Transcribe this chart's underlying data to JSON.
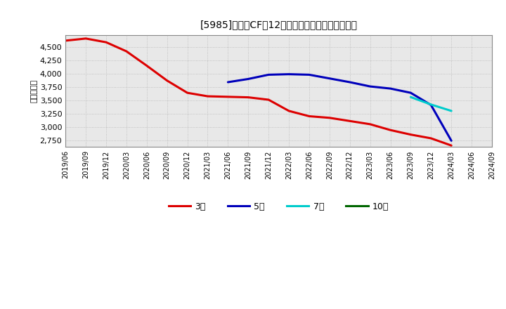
{
  "title": "[5985]　営業CFだ12か月移動合計の平均値の推移",
  "ylabel": "（百万円）",
  "background_color": "#ffffff",
  "plot_bg_color": "#e8e8e8",
  "grid_color": "#aaaaaa",
  "ylim": [
    2620,
    4720
  ],
  "yticks": [
    2750,
    3000,
    3250,
    3500,
    3750,
    4000,
    4250,
    4500
  ],
  "series": {
    "3year": {
      "color": "#dd0000",
      "label": "3年",
      "x": [
        "2019/06",
        "2019/09",
        "2019/12",
        "2020/03",
        "2020/06",
        "2020/09",
        "2020/12",
        "2021/03",
        "2021/06",
        "2021/09",
        "2021/12",
        "2022/03",
        "2022/06",
        "2022/09",
        "2022/12",
        "2023/03",
        "2023/06",
        "2023/09",
        "2023/12",
        "2024/03"
      ],
      "y": [
        4620,
        4660,
        4590,
        4420,
        4150,
        3870,
        3640,
        3575,
        3565,
        3555,
        3510,
        3300,
        3200,
        3170,
        3110,
        3050,
        2940,
        2855,
        2785,
        2650
      ]
    },
    "5year": {
      "color": "#0000bb",
      "label": "5年",
      "x": [
        "2021/06",
        "2021/09",
        "2021/12",
        "2022/03",
        "2022/06",
        "2022/09",
        "2022/12",
        "2023/03",
        "2023/06",
        "2023/09",
        "2023/12",
        "2024/03"
      ],
      "y": [
        3840,
        3900,
        3980,
        3990,
        3980,
        3910,
        3840,
        3760,
        3720,
        3640,
        3410,
        2740
      ]
    },
    "7year": {
      "color": "#00cccc",
      "label": "7年",
      "x": [
        "2023/09",
        "2023/12",
        "2024/03"
      ],
      "y": [
        3560,
        3420,
        3300
      ]
    },
    "10year": {
      "color": "#006600",
      "label": "10年",
      "x": [],
      "y": []
    }
  },
  "xtick_labels": [
    "2019/06",
    "2019/09",
    "2019/12",
    "2020/03",
    "2020/06",
    "2020/09",
    "2020/12",
    "2021/03",
    "2021/06",
    "2021/09",
    "2021/12",
    "2022/03",
    "2022/06",
    "2022/09",
    "2022/12",
    "2023/03",
    "2023/06",
    "2023/09",
    "2023/12",
    "2024/03",
    "2024/06",
    "2024/09"
  ],
  "legend_entries": [
    "3年",
    "5年",
    "7年",
    "10年"
  ],
  "legend_colors": [
    "#dd0000",
    "#0000bb",
    "#00cccc",
    "#006600"
  ],
  "line_width": 2.2
}
